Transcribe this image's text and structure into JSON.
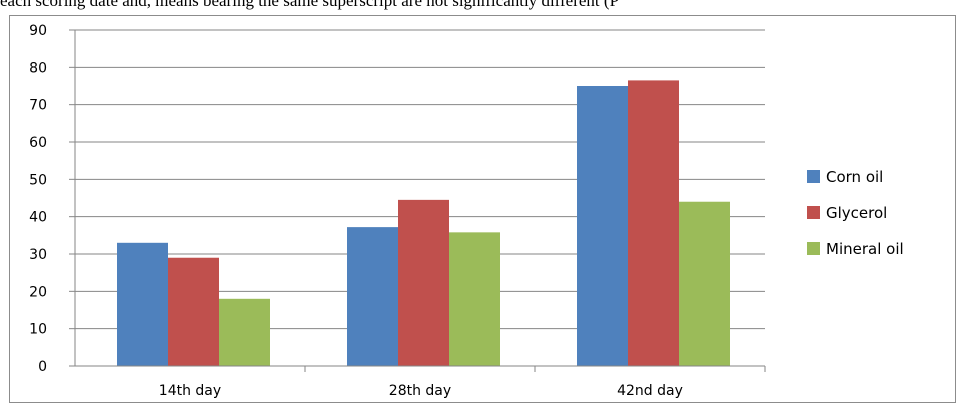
{
  "caption": "each scoring date and, means bearing the same superscript are not significantly different (P",
  "chart_data": {
    "type": "bar",
    "categories": [
      "14th day",
      "28th day",
      "42nd day"
    ],
    "series": [
      {
        "name": "Corn oil",
        "values": [
          33,
          37.2,
          75
        ],
        "color": "#4f81bd"
      },
      {
        "name": "Glycerol",
        "values": [
          29,
          44.5,
          76.5
        ],
        "color": "#c0504d"
      },
      {
        "name": "Mineral oil",
        "values": [
          18,
          35.8,
          44
        ],
        "color": "#9bbb59"
      }
    ],
    "y_ticks": [
      "0",
      "10",
      "20",
      "30",
      "40",
      "50",
      "60",
      "70",
      "80",
      "90"
    ],
    "ylim": [
      0,
      90
    ],
    "grid": true,
    "legend_position": "right",
    "title": "",
    "xlabel": "",
    "ylabel": ""
  }
}
